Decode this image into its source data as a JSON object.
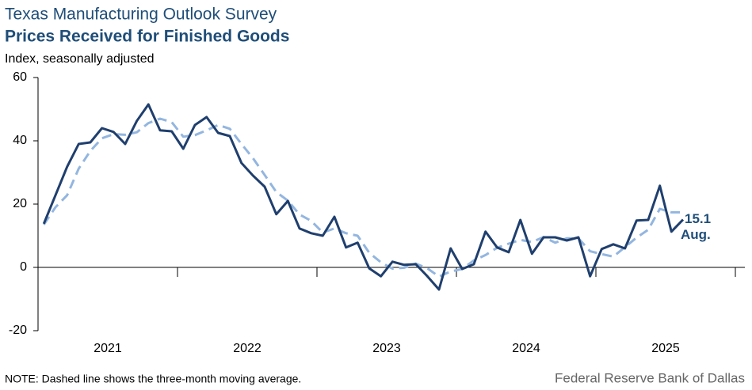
{
  "chart_data": {
    "type": "line",
    "title": "Texas Manufacturing Outlook Survey",
    "subtitle": "Prices Received for Finished Goods",
    "y_label": "Index, seasonally adjusted",
    "note": "NOTE: Dashed line shows the three-month  moving average.",
    "source": "Federal Reserve Bank of Dallas",
    "xticks": [
      "2021",
      "2022",
      "2023",
      "2024",
      "2025"
    ],
    "ylim": [
      -20,
      60
    ],
    "yticks": [
      -20,
      0,
      20,
      40,
      60
    ],
    "series": [
      {
        "color": "#1f3f6e",
        "dashed": false,
        "values": [
          13.8,
          22.8,
          31.8,
          39,
          39.5,
          44,
          42.8,
          39,
          46.3,
          51.5,
          43.3,
          43,
          37.5,
          45,
          47.5,
          42.5,
          41.5,
          33,
          29,
          25.5,
          16.8,
          21,
          12.3,
          10.8,
          10,
          16,
          6.3,
          7.8,
          -0.3,
          -2.8,
          1.8,
          0.8,
          1,
          -2.8,
          -7,
          6,
          -0.5,
          1,
          11.3,
          6.3,
          4.8,
          15,
          4.3,
          9.5,
          9.5,
          8.5,
          9.5,
          -2.8,
          5.8,
          7.3,
          6,
          14.8,
          15,
          25.8,
          11.3,
          15.1
        ]
      },
      {
        "color": "#93b6e0",
        "dashed": true,
        "values": [
          13.5,
          19,
          22.8,
          31.2,
          36.8,
          40.8,
          42.1,
          41.9,
          42.7,
          45.6,
          47,
          45.9,
          41.3,
          41.8,
          43.3,
          45,
          43.8,
          39,
          34.5,
          29.2,
          23.8,
          21.1,
          16.7,
          14.7,
          11,
          12.3,
          10.8,
          10,
          4.6,
          1.6,
          -0.4,
          -0.1,
          1.2,
          -0.3,
          -2.9,
          -1.3,
          -0.5,
          2.2,
          3.9,
          6.2,
          7.5,
          8.7,
          8,
          9.6,
          7.8,
          9.2,
          9.2,
          5.1,
          4.2,
          3.4,
          6.4,
          9.4,
          11.9,
          18.5,
          17.4,
          17.4
        ]
      }
    ],
    "annotations": [
      "15.1",
      "Aug."
    ]
  }
}
